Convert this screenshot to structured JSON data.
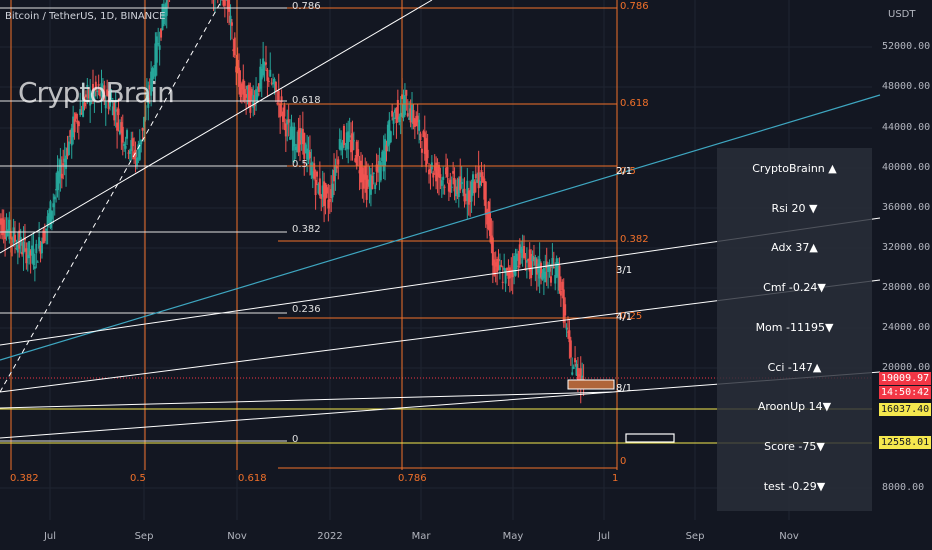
{
  "symbol_label": "Bitcoin / TetherUS, 1D, BINANCE",
  "watermark": "CryptoBrain",
  "colors": {
    "background": "#131722",
    "fib_orange": "#f0702a",
    "fib_white": "#e0e0e0",
    "channel_teal": "#3ea6c0",
    "yellow_level": "#f5e84e",
    "candle_up": "#26a69a",
    "candle_down": "#ef5350",
    "price_tag": "#f23645"
  },
  "chart_data": {
    "type": "candlestick",
    "price_axis_unit": "USDT",
    "price_ticks": [
      "52000.00",
      "48000.00",
      "44000.00",
      "40000.00",
      "36000.00",
      "32000.00",
      "28000.00",
      "24000.00",
      "20000.00",
      "8000.00"
    ],
    "time_ticks": [
      "Jul",
      "Sep",
      "Nov",
      "2022",
      "Mar",
      "May",
      "Jul",
      "Sep",
      "Nov"
    ],
    "horizontal_fib_labels": [
      "0.786",
      "0.618",
      "0.5",
      "0.382",
      "0.236",
      "0"
    ],
    "vertical_fib_labels": [
      "0.382",
      "0.5",
      "0.618",
      "0.786",
      "1"
    ],
    "right_fib_labels": [
      "0.786",
      "0.618",
      "0.5",
      "0.382",
      "0.25",
      "0"
    ],
    "fan_labels": [
      "2/1",
      "3/1",
      "4/1",
      "8/1"
    ],
    "price_tags": [
      {
        "text": "19009.97",
        "color": "#f23645"
      },
      {
        "text": "14:50:42",
        "color": "#f23645"
      },
      {
        "text": "16037.40",
        "color": "#f5e84e"
      },
      {
        "text": "12558.01",
        "color": "#f5e84e"
      }
    ],
    "series_close_approx": [
      35000,
      33500,
      32000,
      31000,
      34500,
      39500,
      44000,
      47000,
      47500,
      46500,
      43000,
      41000,
      48000,
      55000,
      61000,
      59000,
      64000,
      58000,
      57000,
      48000,
      46500,
      50000,
      47000,
      43000,
      42500,
      38500,
      36500,
      43000,
      42000,
      38000,
      39500,
      45000,
      46500,
      44000,
      40000,
      39000,
      38000,
      37500,
      39600,
      30000,
      29000,
      31500,
      30000,
      29500,
      29800,
      20500,
      19000
    ]
  },
  "indicator_panel": {
    "rows": [
      {
        "label": "CryptoBrainn",
        "value": "▲"
      },
      {
        "label": "Rsi",
        "value": "20 ▼"
      },
      {
        "label": "Adx",
        "value": "37▲"
      },
      {
        "label": "Cmf",
        "value": "-0.24▼"
      },
      {
        "label": "Mom",
        "value": "-11195▼"
      },
      {
        "label": "Cci",
        "value": "-147▲"
      },
      {
        "label": "AroonUp",
        "value": "14▼"
      },
      {
        "label": "Score",
        "value": "-75▼"
      },
      {
        "label": "test",
        "value": "-0.29▼"
      }
    ]
  }
}
